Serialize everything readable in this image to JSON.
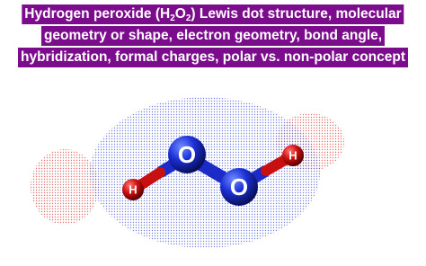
{
  "title_lines": [
    [
      "Hydrogen peroxide (H",
      "2",
      "O",
      "2",
      ") Lewis dot structure, molecular"
    ],
    [
      "geometry or shape, electron geometry, bond angle,"
    ],
    [
      "hybridization, formal charges, polar vs. non-polar concept"
    ]
  ],
  "atoms": [
    "O",
    "O",
    "H",
    "H"
  ]
}
